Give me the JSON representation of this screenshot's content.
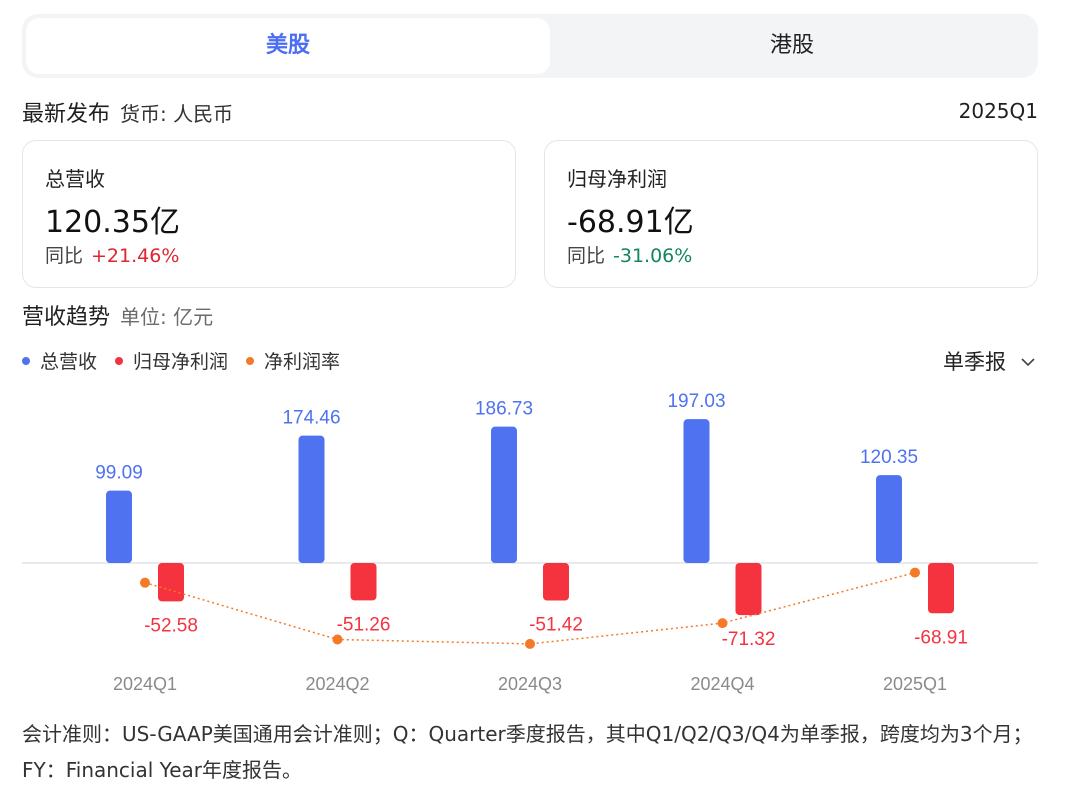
{
  "tabs": [
    {
      "label": "美股",
      "active": true
    },
    {
      "label": "港股",
      "active": false
    }
  ],
  "header": {
    "title": "最新发布",
    "currency": "货币: 人民币",
    "period": "2025Q1"
  },
  "cards": [
    {
      "label": "总营收",
      "value": "120.35亿",
      "yoy_label": "同比",
      "yoy_value": "+21.46%",
      "trend": "up"
    },
    {
      "label": "归母净利润",
      "value": "-68.91亿",
      "yoy_label": "同比",
      "yoy_value": "-31.06%",
      "trend": "down"
    }
  ],
  "section": {
    "title": "营收趋势",
    "unit": "单位: 亿元",
    "period_select": "单季报"
  },
  "colors": {
    "accent": "#4c6ef5",
    "revenue": "#4e72f0",
    "profit": "#f5333f",
    "margin": "#f47a28",
    "up": "#e0242f",
    "down": "#13865b"
  },
  "chart_data": {
    "type": "bar",
    "categories": [
      "2024Q1",
      "2024Q2",
      "2024Q3",
      "2024Q4",
      "2025Q1"
    ],
    "series": [
      {
        "name": "总营收",
        "values": [
          99.09,
          174.46,
          186.73,
          197.03,
          120.35
        ]
      },
      {
        "name": "归母净利润",
        "values": [
          -52.58,
          -51.26,
          -51.42,
          -71.32,
          -68.91
        ]
      },
      {
        "name": "净利润率",
        "type": "line",
        "values": [
          -53.06,
          -29.38,
          -27.54,
          -36.2,
          -57.26
        ]
      }
    ],
    "legend": "top-left"
  },
  "footnote": "会计准则：US-GAAP美国通用会计准则；Q：Quarter季度报告，其中Q1/Q2/Q3/Q4为单季报，跨度均为3个月；FY：Financial Year年度报告。"
}
